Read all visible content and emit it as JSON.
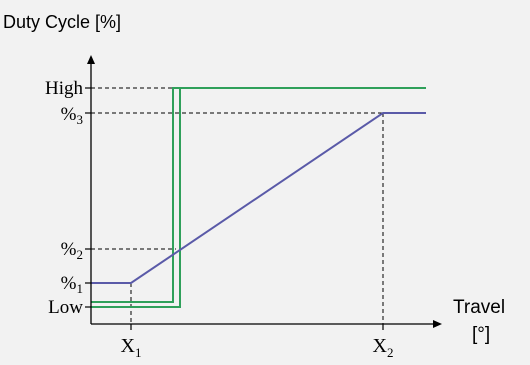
{
  "y_axis_title": "Duty Cycle [%]",
  "x_axis_title_line1": "Travel",
  "x_axis_title_line2": "[°]",
  "y_labels": {
    "high": "High",
    "p3_base": "%",
    "p3_sub": "3",
    "p2_base": "%",
    "p2_sub": "2",
    "p1_base": "%",
    "p1_sub": "1",
    "low": "Low"
  },
  "x_labels": {
    "x1_base": "X",
    "x1_sub": "1",
    "x2_base": "X",
    "x2_sub": "2"
  },
  "colors": {
    "background": "#f2f2f2",
    "axis": "#000000",
    "guide": "#000000",
    "blue_line": "#5a5aa8",
    "green_line": "#2fa05a"
  }
}
